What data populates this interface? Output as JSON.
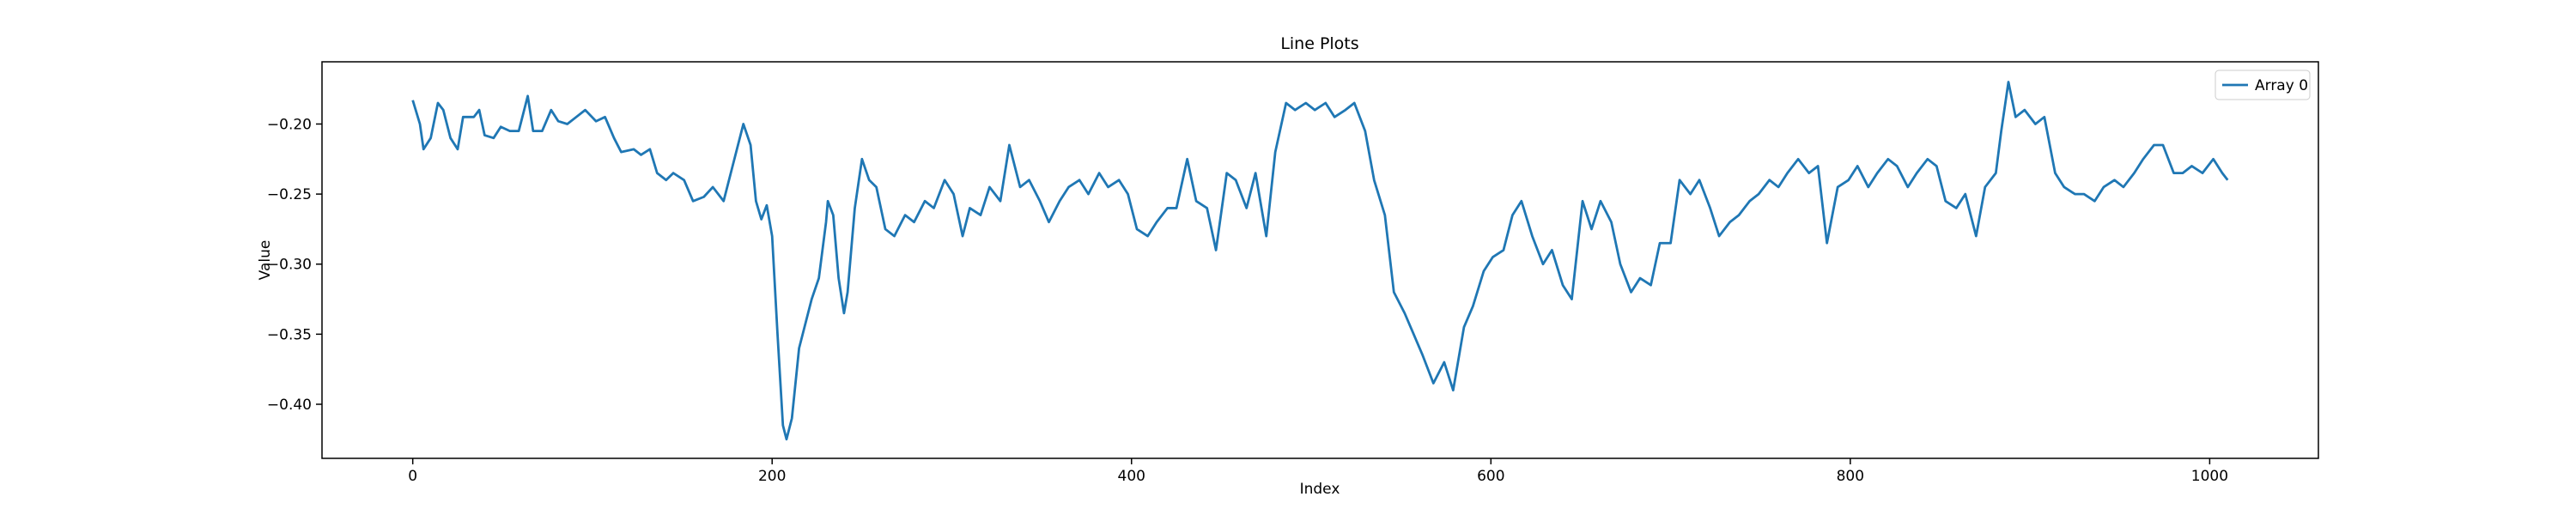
{
  "chart_data": {
    "type": "line",
    "title": "Line Plots",
    "x_label": "Index",
    "y_label": "Value",
    "xlim": [
      -50.5,
      1060.5
    ],
    "ylim": [
      -0.4386,
      -0.1556
    ],
    "xticks": [
      0,
      200,
      400,
      600,
      800,
      1000
    ],
    "yticks": [
      {
        "value": -0.4,
        "label": "−0.40"
      },
      {
        "value": -0.35,
        "label": "−0.35"
      },
      {
        "value": -0.3,
        "label": "−0.30"
      },
      {
        "value": -0.25,
        "label": "−0.25"
      },
      {
        "value": -0.2,
        "label": "−0.20"
      }
    ],
    "legend_loc": "upper right",
    "x": [
      0,
      4,
      6,
      10,
      14,
      17,
      21,
      25,
      28,
      34,
      37,
      40,
      45,
      49,
      54,
      59,
      64,
      67,
      72,
      77,
      81,
      86,
      91,
      96,
      102,
      107,
      112,
      116,
      123,
      127,
      132,
      136,
      141,
      145,
      151,
      156,
      162,
      167,
      173,
      178,
      184,
      188,
      191,
      194,
      197,
      200,
      203,
      206,
      208,
      211,
      215,
      219,
      222,
      226,
      230,
      231,
      234,
      237,
      240,
      242,
      246,
      250,
      254,
      258,
      263,
      268,
      274,
      279,
      285,
      290,
      296,
      301,
      306,
      310,
      316,
      321,
      327,
      332,
      338,
      343,
      349,
      354,
      360,
      365,
      371,
      376,
      382,
      387,
      393,
      398,
      403,
      409,
      414,
      420,
      425,
      431,
      436,
      442,
      447,
      453,
      458,
      464,
      469,
      475,
      480,
      486,
      491,
      497,
      502,
      508,
      513,
      519,
      524,
      530,
      535,
      541,
      546,
      552,
      557,
      562,
      568,
      574,
      579,
      585,
      590,
      596,
      601,
      607,
      612,
      617,
      623,
      629,
      634,
      640,
      645,
      651,
      656,
      661,
      667,
      672,
      678,
      683,
      689,
      694,
      700,
      705,
      711,
      716,
      722,
      727,
      733,
      738,
      744,
      749,
      755,
      760,
      765,
      771,
      777,
      782,
      787,
      793,
      799,
      804,
      810,
      815,
      821,
      826,
      832,
      837,
      843,
      848,
      853,
      859,
      864,
      870,
      875,
      881,
      884,
      888,
      892,
      897,
      903,
      908,
      914,
      919,
      925,
      930,
      936,
      941,
      947,
      952,
      958,
      963,
      969,
      974,
      980,
      985,
      990,
      996,
      1002,
      1007,
      1010
    ],
    "series": [
      {
        "name": "Array 0",
        "color": "#1f77b4",
        "values": [
          -0.183,
          -0.2,
          -0.218,
          -0.21,
          -0.185,
          -0.19,
          -0.21,
          -0.218,
          -0.195,
          -0.195,
          -0.19,
          -0.208,
          -0.21,
          -0.202,
          -0.205,
          -0.205,
          -0.18,
          -0.205,
          -0.205,
          -0.19,
          -0.198,
          -0.2,
          -0.195,
          -0.19,
          -0.198,
          -0.195,
          -0.21,
          -0.22,
          -0.218,
          -0.222,
          -0.218,
          -0.235,
          -0.24,
          -0.235,
          -0.24,
          -0.255,
          -0.252,
          -0.245,
          -0.255,
          -0.23,
          -0.2,
          -0.215,
          -0.255,
          -0.268,
          -0.258,
          -0.28,
          -0.35,
          -0.415,
          -0.425,
          -0.41,
          -0.36,
          -0.34,
          -0.325,
          -0.31,
          -0.27,
          -0.255,
          -0.265,
          -0.31,
          -0.335,
          -0.32,
          -0.26,
          -0.225,
          -0.24,
          -0.245,
          -0.275,
          -0.28,
          -0.265,
          -0.27,
          -0.255,
          -0.26,
          -0.24,
          -0.25,
          -0.28,
          -0.26,
          -0.265,
          -0.245,
          -0.255,
          -0.215,
          -0.245,
          -0.24,
          -0.255,
          -0.27,
          -0.255,
          -0.245,
          -0.24,
          -0.25,
          -0.235,
          -0.245,
          -0.24,
          -0.25,
          -0.275,
          -0.28,
          -0.27,
          -0.26,
          -0.26,
          -0.225,
          -0.255,
          -0.26,
          -0.29,
          -0.235,
          -0.24,
          -0.26,
          -0.235,
          -0.28,
          -0.22,
          -0.185,
          -0.19,
          -0.185,
          -0.19,
          -0.185,
          -0.195,
          -0.19,
          -0.185,
          -0.205,
          -0.24,
          -0.265,
          -0.32,
          -0.335,
          -0.35,
          -0.365,
          -0.385,
          -0.37,
          -0.39,
          -0.345,
          -0.33,
          -0.305,
          -0.295,
          -0.29,
          -0.265,
          -0.255,
          -0.28,
          -0.3,
          -0.29,
          -0.315,
          -0.325,
          -0.255,
          -0.275,
          -0.255,
          -0.27,
          -0.3,
          -0.32,
          -0.31,
          -0.315,
          -0.285,
          -0.285,
          -0.24,
          -0.25,
          -0.24,
          -0.26,
          -0.28,
          -0.27,
          -0.265,
          -0.255,
          -0.25,
          -0.24,
          -0.245,
          -0.235,
          -0.225,
          -0.235,
          -0.23,
          -0.285,
          -0.245,
          -0.24,
          -0.23,
          -0.245,
          -0.235,
          -0.225,
          -0.23,
          -0.245,
          -0.235,
          -0.225,
          -0.23,
          -0.255,
          -0.26,
          -0.25,
          -0.28,
          -0.245,
          -0.235,
          -0.205,
          -0.17,
          -0.195,
          -0.19,
          -0.2,
          -0.195,
          -0.235,
          -0.245,
          -0.25,
          -0.25,
          -0.255,
          -0.245,
          -0.24,
          -0.245,
          -0.235,
          -0.225,
          -0.215,
          -0.215,
          -0.235,
          -0.235,
          -0.23,
          -0.235,
          -0.225,
          -0.235,
          -0.24
        ]
      }
    ]
  }
}
